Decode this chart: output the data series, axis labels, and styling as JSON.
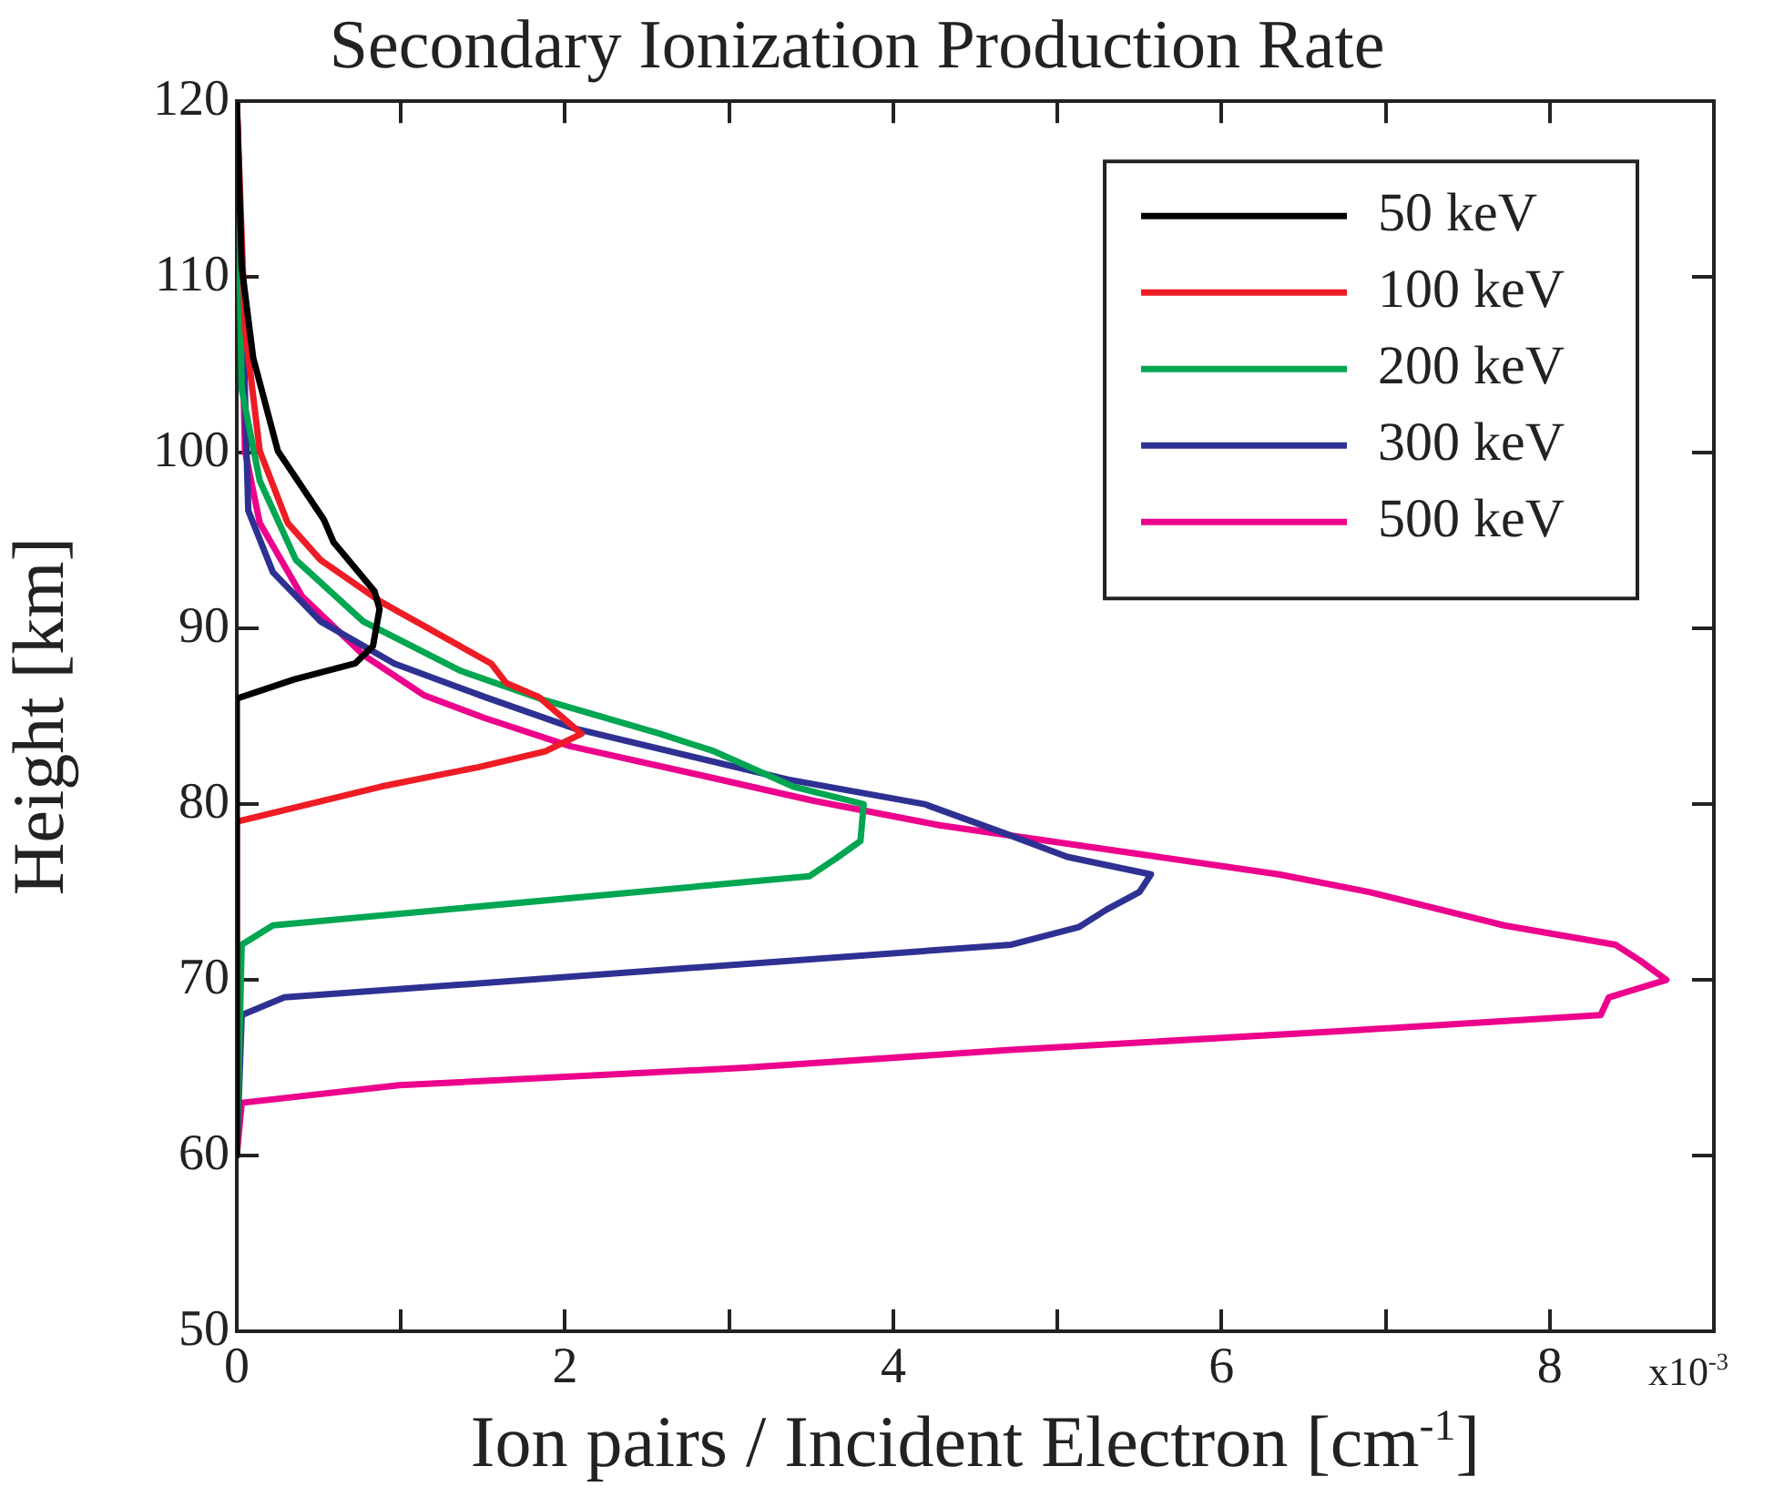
{
  "chart_data": {
    "type": "line",
    "title": "Secondary Ionization Production Rate",
    "xlabel": "Ion pairs / Incident Electron [cm$^{-1}$]",
    "ylabel": "Height [km]",
    "annotations": [
      "x10$^{-3}$"
    ],
    "xlim": [
      0,
      9
    ],
    "xticks": [
      0,
      {
        "value": 1,
        "label": null
      },
      2,
      {
        "value": 3,
        "label": null
      },
      4,
      {
        "value": 5,
        "label": null
      },
      6,
      {
        "value": 7,
        "label": null
      },
      8
    ],
    "ylim": [
      50,
      120
    ],
    "yticks": [
      50,
      60,
      70,
      80,
      90,
      100,
      110,
      120
    ],
    "grid": false,
    "legend": "top right",
    "line_style": "solid",
    "marker": "none",
    "series": [
      {
        "name": "50 keV",
        "color": "#000000",
        "x": [
          0,
          0.03,
          0.1,
          0.25,
          0.53,
          0.59,
          0.84,
          0.87,
          0.83,
          0.72,
          0.35,
          0,
          0
        ],
        "values": [
          120,
          110.6,
          105.4,
          100.1,
          96.2,
          94.9,
          92.1,
          91.1,
          89,
          88,
          87.1,
          86,
          60
        ]
      },
      {
        "name": "100 keV",
        "color": "#ee1c25",
        "x": [
          0,
          0.05,
          0.14,
          0.31,
          0.51,
          0.88,
          1.55,
          1.64,
          1.84,
          2.1,
          1.88,
          1.47,
          0.88,
          0,
          0
        ],
        "values": [
          120,
          107.1,
          100.1,
          96,
          93.9,
          91.5,
          88,
          86.9,
          86.1,
          84,
          83,
          82.1,
          81,
          79,
          60
        ]
      },
      {
        "name": "200 keV",
        "color": "#00a651",
        "x": [
          0,
          0.03,
          0.14,
          0.36,
          0.77,
          1.36,
          1.88,
          2.58,
          2.91,
          3.39,
          3.82,
          3.8,
          3.65,
          3.49,
          0.22,
          0.03,
          0
        ],
        "values": [
          120,
          103.6,
          98.4,
          93.9,
          90.4,
          87.6,
          85.9,
          84,
          83,
          81,
          80,
          77.9,
          76.9,
          75.9,
          73.1,
          72,
          60
        ]
      },
      {
        "name": "300 keV",
        "color": "#2e3192",
        "x": [
          0,
          0.07,
          0.22,
          0.51,
          0.96,
          1.51,
          2.06,
          3.36,
          4.19,
          4.69,
          5.06,
          5.57,
          5.5,
          5.3,
          5.13,
          4.72,
          0.29,
          0.03,
          0
        ],
        "values": [
          120,
          96.7,
          93.2,
          90.4,
          88,
          86.1,
          84.3,
          81.4,
          80,
          78.3,
          77,
          76,
          75,
          74,
          73,
          72,
          69,
          68,
          60
        ]
      },
      {
        "name": "500 keV",
        "color": "#ec008c",
        "x": [
          0,
          0.05,
          0.14,
          0.4,
          0.77,
          1.14,
          1.51,
          2.03,
          2.8,
          3.51,
          4.28,
          5.54,
          6.35,
          6.9,
          7.72,
          8.4,
          8.55,
          8.71,
          8.36,
          8.31,
          6.76,
          4.69,
          3.1,
          0.99,
          0.03,
          0
        ],
        "values": [
          120,
          100.1,
          96,
          91.8,
          88.5,
          86.2,
          84.9,
          83.3,
          81.7,
          80.2,
          78.8,
          77.1,
          76,
          75,
          73.1,
          72,
          71.1,
          70,
          69,
          68,
          67.1,
          66,
          65,
          64,
          63,
          60
        ]
      }
    ]
  }
}
